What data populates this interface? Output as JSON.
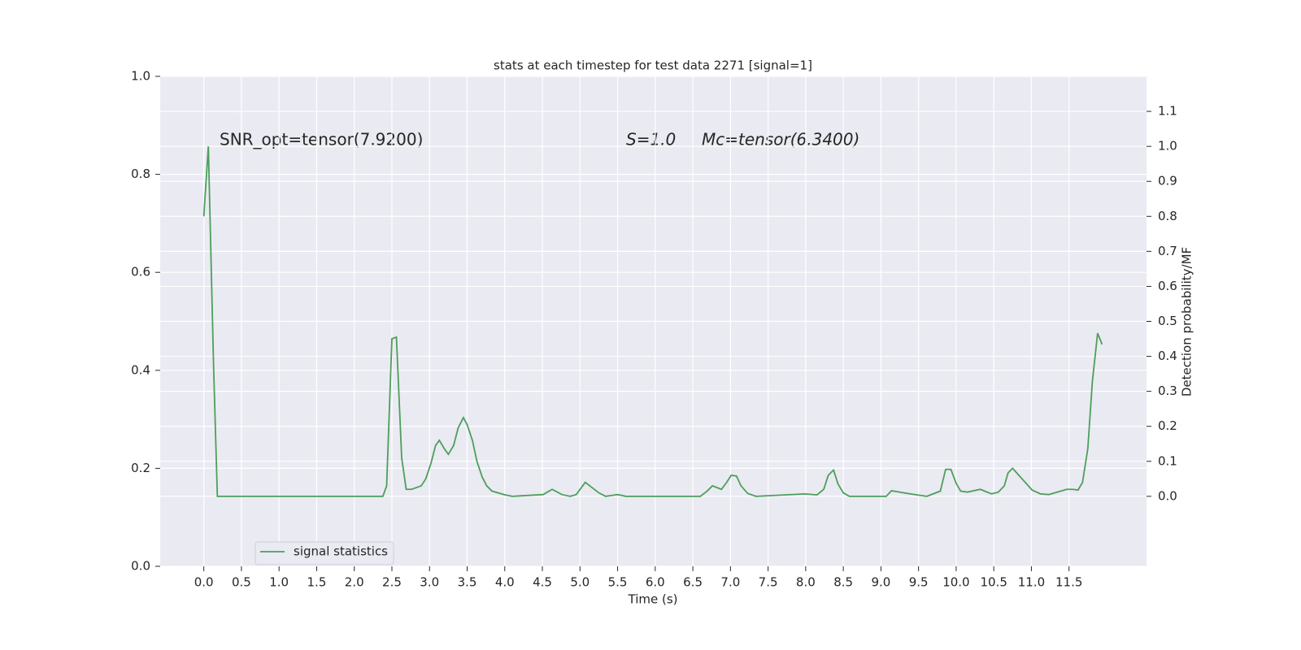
{
  "chart_data": {
    "type": "line",
    "title": "stats at each timestep for test data 2271 [signal=1]",
    "xlabel": "Time (s)",
    "y2label": "Detection probability/MF",
    "annotations": [
      "SNR_opt=tensor(7.9200)",
      "S=1.0",
      "Mc=tensor(6.3400)"
    ],
    "xlim": [
      -0.58,
      12.53
    ],
    "xticks": [
      {
        "value": 0,
        "label": "0.0"
      },
      0.5,
      {
        "value": 1,
        "label": "1.0"
      },
      1.5,
      {
        "value": 2,
        "label": "2.0"
      },
      2.5,
      {
        "value": 3,
        "label": "3.0"
      },
      3.5,
      {
        "value": 4,
        "label": "4.0"
      },
      4.5,
      {
        "value": 5,
        "label": "5.0"
      },
      5.5,
      {
        "value": 6,
        "label": "6.0"
      },
      6.5,
      {
        "value": 7,
        "label": "7.0"
      },
      7.5,
      {
        "value": 8,
        "label": "8.0"
      },
      8.5,
      {
        "value": 9,
        "label": "9.0"
      },
      9.5,
      {
        "value": 10,
        "label": "10.0"
      },
      10.5,
      {
        "value": 11,
        "label": "11.0"
      },
      11.5
    ],
    "ylim": [
      0,
      1
    ],
    "yticks": [
      {
        "value": 0,
        "label": "0.0"
      },
      0.2,
      0.4,
      0.6,
      0.8,
      {
        "value": 1,
        "label": "1.0"
      }
    ],
    "y2lim": [
      -0.2,
      1.2
    ],
    "y2ticks": [
      {
        "value": 0,
        "label": "0.0"
      },
      0.1,
      0.2,
      0.3,
      0.4,
      0.5,
      0.6,
      0.7,
      0.8,
      0.9,
      {
        "value": 1,
        "label": "1.0"
      },
      1.1
    ],
    "grid": true,
    "legend": "lower left",
    "x": [
      0.0,
      0.06,
      0.13,
      0.18,
      2.38,
      2.43,
      2.5,
      2.56,
      2.63,
      2.69,
      2.76,
      2.89,
      2.95,
      3.02,
      3.08,
      3.13,
      3.2,
      3.25,
      3.32,
      3.38,
      3.45,
      3.5,
      3.57,
      3.63,
      3.7,
      3.76,
      3.83,
      3.99,
      4.1,
      4.51,
      4.63,
      4.76,
      4.87,
      4.95,
      5.07,
      5.13,
      5.25,
      5.34,
      5.5,
      5.61,
      6.6,
      6.69,
      6.76,
      6.88,
      6.95,
      7.01,
      7.08,
      7.14,
      7.23,
      7.34,
      7.99,
      8.15,
      8.24,
      8.3,
      8.37,
      8.43,
      8.5,
      8.58,
      9.07,
      9.14,
      9.39,
      9.61,
      9.79,
      9.86,
      9.93,
      10.0,
      10.06,
      10.15,
      10.32,
      10.47,
      10.56,
      10.64,
      10.69,
      10.75,
      11.01,
      11.12,
      11.23,
      11.47,
      11.55,
      11.62,
      11.68,
      11.75,
      11.81,
      11.88,
      11.94
    ],
    "series": [
      {
        "name": "signal statistics",
        "color": "#4c9f5b",
        "axis": "y2",
        "values": [
          0.8,
          1.0,
          0.37,
          0.0,
          0.0,
          0.03,
          0.45,
          0.455,
          0.11,
          0.02,
          0.02,
          0.03,
          0.05,
          0.095,
          0.145,
          0.16,
          0.135,
          0.12,
          0.145,
          0.195,
          0.225,
          0.205,
          0.16,
          0.1,
          0.055,
          0.03,
          0.015,
          0.005,
          0.0,
          0.005,
          0.02,
          0.005,
          0.0,
          0.005,
          0.04,
          0.03,
          0.01,
          0.0,
          0.005,
          0.0,
          0.0,
          0.015,
          0.03,
          0.02,
          0.04,
          0.06,
          0.058,
          0.03,
          0.008,
          0.0,
          0.007,
          0.004,
          0.02,
          0.06,
          0.075,
          0.035,
          0.01,
          0.0,
          0.0,
          0.016,
          0.007,
          0.0,
          0.015,
          0.077,
          0.077,
          0.037,
          0.015,
          0.012,
          0.02,
          0.007,
          0.012,
          0.03,
          0.067,
          0.08,
          0.018,
          0.007,
          0.005,
          0.02,
          0.02,
          0.018,
          0.04,
          0.137,
          0.327,
          0.466,
          0.434
        ]
      }
    ]
  }
}
